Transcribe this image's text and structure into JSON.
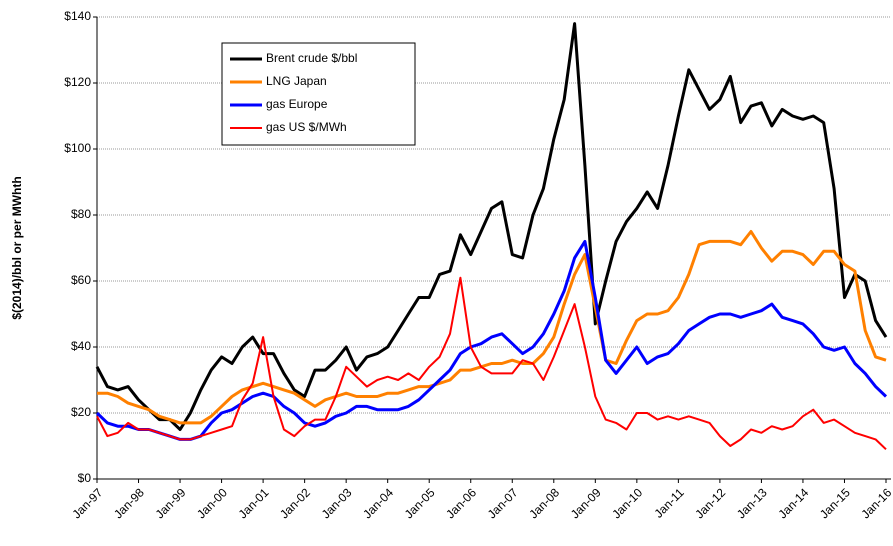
{
  "chart_data": {
    "type": "line",
    "y_label": "$(2014)/bbl or per MWhth",
    "categories": [
      "Jan-97",
      null,
      null,
      null,
      "Jan-98",
      null,
      null,
      null,
      "Jan-99",
      null,
      null,
      null,
      "Jan-00",
      null,
      null,
      null,
      "Jan-01",
      null,
      null,
      null,
      "Jan-02",
      null,
      null,
      null,
      "Jan-03",
      null,
      null,
      null,
      "Jan-04",
      null,
      null,
      null,
      "Jan-05",
      null,
      null,
      null,
      "Jan-06",
      null,
      null,
      null,
      "Jan-07",
      null,
      null,
      null,
      "Jan-08",
      null,
      null,
      null,
      "Jan-09",
      null,
      null,
      null,
      "Jan-10",
      null,
      null,
      null,
      "Jan-11",
      null,
      null,
      null,
      "Jan-12",
      null,
      null,
      null,
      "Jan-13",
      null,
      null,
      null,
      "Jan-14",
      null,
      null,
      null,
      "Jan-15",
      null,
      null,
      null,
      "Jan-16"
    ],
    "series": [
      {
        "name": "Brent crude $/bbl",
        "color": "#000000",
        "values": [
          34,
          28,
          27,
          28,
          24,
          21,
          18,
          18,
          15,
          20,
          27,
          33,
          37,
          35,
          40,
          43,
          38,
          38,
          32,
          27,
          25,
          33,
          33,
          36,
          40,
          33,
          37,
          38,
          40,
          45,
          50,
          55,
          55,
          62,
          63,
          74,
          68,
          75,
          82,
          84,
          68,
          67,
          80,
          88,
          103,
          115,
          138,
          95,
          47,
          60,
          72,
          78,
          82,
          87,
          82,
          95,
          110,
          124,
          118,
          112,
          115,
          122,
          108,
          113,
          114,
          107,
          112,
          110,
          109,
          110,
          108,
          88,
          55,
          62,
          60,
          48,
          43
        ]
      },
      {
        "name": "LNG Japan",
        "color": "#ff8000",
        "values": [
          26,
          26,
          25,
          23,
          22,
          21,
          19,
          18,
          17,
          17,
          17,
          19,
          22,
          25,
          27,
          28,
          29,
          28,
          27,
          26,
          24,
          22,
          24,
          25,
          26,
          25,
          25,
          25,
          26,
          26,
          27,
          28,
          28,
          29,
          30,
          33,
          33,
          34,
          35,
          35,
          36,
          35,
          35,
          38,
          43,
          53,
          62,
          68,
          52,
          36,
          35,
          42,
          48,
          50,
          50,
          51,
          55,
          62,
          71,
          72,
          72,
          72,
          71,
          75,
          70,
          66,
          69,
          69,
          68,
          65,
          69,
          69,
          65,
          63,
          45,
          37,
          36
        ]
      },
      {
        "name": "gas Europe",
        "color": "#0000ff",
        "values": [
          20,
          17,
          16,
          16,
          15,
          15,
          14,
          13,
          12,
          12,
          13,
          17,
          20,
          21,
          23,
          25,
          26,
          25,
          22,
          20,
          17,
          16,
          17,
          19,
          20,
          22,
          22,
          21,
          21,
          21,
          22,
          24,
          27,
          30,
          33,
          38,
          40,
          41,
          43,
          44,
          41,
          38,
          40,
          44,
          50,
          57,
          67,
          72,
          55,
          36,
          32,
          36,
          40,
          35,
          37,
          38,
          41,
          45,
          47,
          49,
          50,
          50,
          49,
          50,
          51,
          53,
          49,
          48,
          47,
          44,
          40,
          39,
          40,
          35,
          32,
          28,
          25
        ]
      },
      {
        "name": "gas US $/MWh",
        "color": "#ff0000",
        "values": [
          19,
          13,
          14,
          17,
          15,
          15,
          14,
          13,
          12,
          12,
          13,
          14,
          15,
          16,
          24,
          29,
          43,
          25,
          15,
          13,
          16,
          18,
          18,
          25,
          34,
          31,
          28,
          30,
          31,
          30,
          32,
          30,
          34,
          37,
          44,
          61,
          40,
          34,
          32,
          32,
          32,
          36,
          35,
          30,
          37,
          45,
          53,
          40,
          25,
          18,
          17,
          15,
          20,
          20,
          18,
          19,
          18,
          19,
          18,
          17,
          13,
          10,
          12,
          15,
          14,
          16,
          15,
          16,
          19,
          21,
          17,
          18,
          16,
          14,
          13,
          12,
          9
        ]
      }
    ],
    "ylim": [
      0,
      140
    ],
    "yticks": [
      {
        "value": 0,
        "label": "$0"
      },
      {
        "value": 20,
        "label": "$20"
      },
      {
        "value": 40,
        "label": "$40"
      },
      {
        "value": 60,
        "label": "$60"
      },
      {
        "value": 80,
        "label": "$80"
      },
      {
        "value": 100,
        "label": "$100"
      },
      {
        "value": 120,
        "label": "$120"
      },
      {
        "value": 140,
        "label": "$140"
      }
    ],
    "grid": true,
    "legend": "upper left"
  }
}
